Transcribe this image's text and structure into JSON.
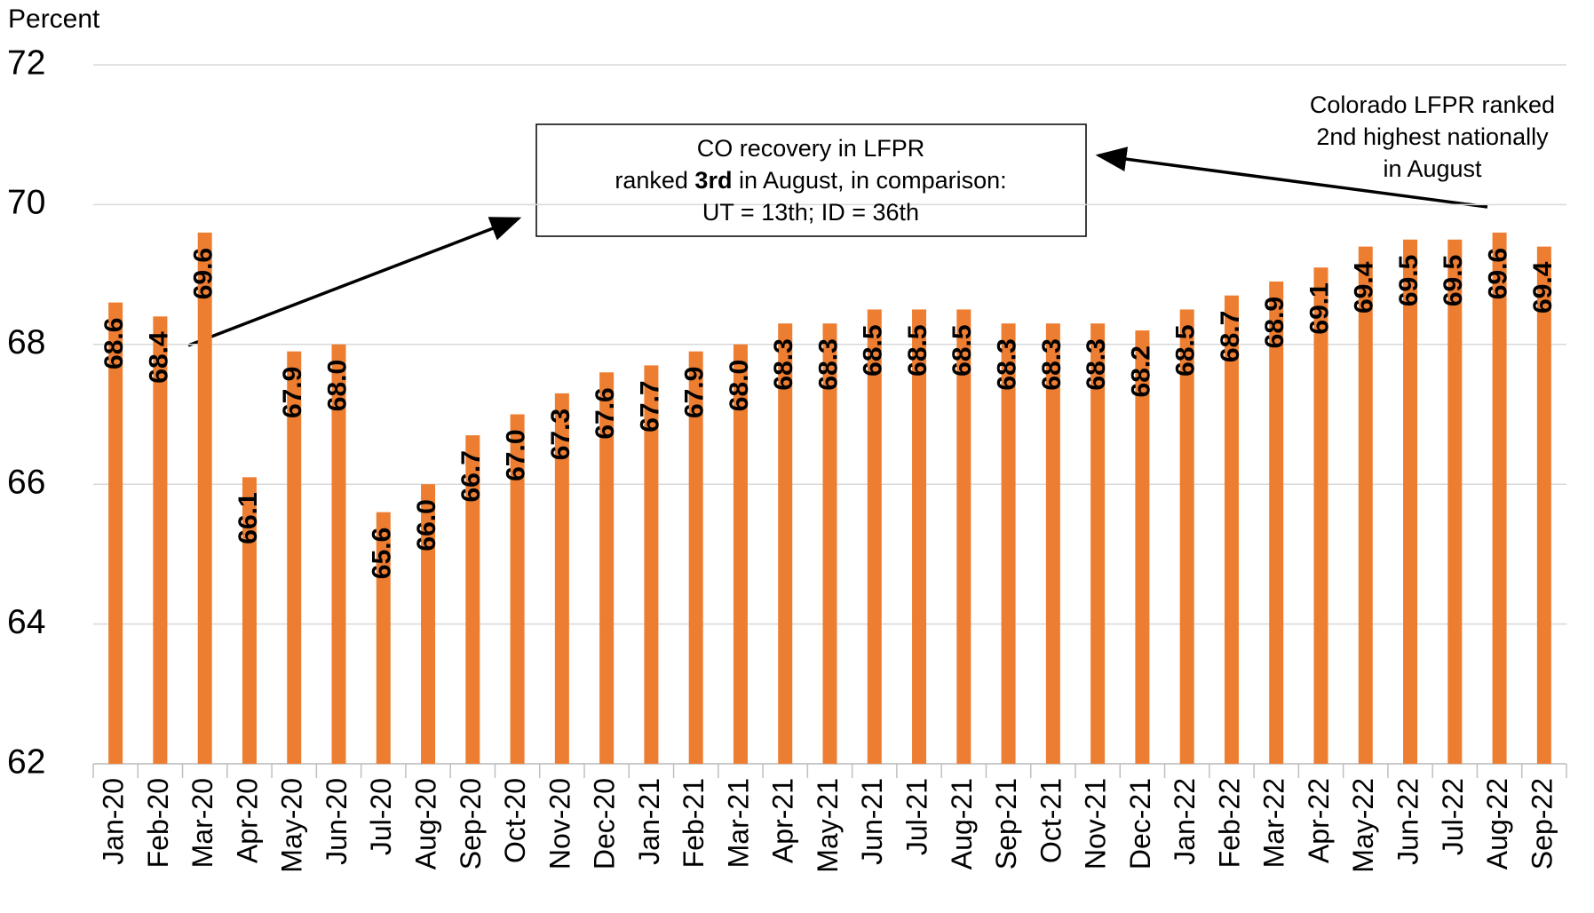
{
  "chart_data": {
    "type": "bar",
    "y_axis_label": "Percent",
    "categories": [
      "Jan-20",
      "Feb-20",
      "Mar-20",
      "Apr-20",
      "May-20",
      "Jun-20",
      "Jul-20",
      "Aug-20",
      "Sep-20",
      "Oct-20",
      "Nov-20",
      "Dec-20",
      "Jan-21",
      "Feb-21",
      "Mar-21",
      "Apr-21",
      "May-21",
      "Jun-21",
      "Jul-21",
      "Aug-21",
      "Sep-21",
      "Oct-21",
      "Nov-21",
      "Dec-21",
      "Jan-22",
      "Feb-22",
      "Mar-22",
      "Apr-22",
      "May-22",
      "Jun-22",
      "Jul-22",
      "Aug-22",
      "Sep-22"
    ],
    "values": [
      68.6,
      68.4,
      69.6,
      66.1,
      67.9,
      68.0,
      65.6,
      66.0,
      66.7,
      67.0,
      67.3,
      67.6,
      67.7,
      67.9,
      68.0,
      68.3,
      68.3,
      68.5,
      68.5,
      68.5,
      68.3,
      68.3,
      68.3,
      68.2,
      68.5,
      68.7,
      68.9,
      69.1,
      69.4,
      69.5,
      69.5,
      69.6,
      69.4
    ],
    "value_labels": [
      "68.6",
      "68.4",
      "69.6",
      "66.1",
      "67.9",
      "68.0",
      "65.6",
      "66.0",
      "66.7",
      "67.0",
      "67.3",
      "67.6",
      "67.7",
      "67.9",
      "68.0",
      "68.3",
      "68.3",
      "68.5",
      "68.5",
      "68.5",
      "68.3",
      "68.3",
      "68.3",
      "68.2",
      "68.5",
      "68.7",
      "68.9",
      "69.1",
      "69.4",
      "69.5",
      "69.5",
      "69.6",
      "69.4"
    ],
    "color": "#ed7d31",
    "ylim": [
      62,
      72
    ],
    "yticks": [
      62,
      64,
      66,
      68,
      70,
      72
    ],
    "grid": true,
    "annotations": [
      {
        "lines": [
          [
            "CO recovery in LFPR"
          ],
          [
            "ranked ",
            "3rd",
            " in August, in comparison:"
          ],
          [
            "UT = 13th; ID = 36th"
          ]
        ]
      },
      {
        "lines": [
          [
            "Colorado LFPR ranked"
          ],
          [
            "2nd highest nationally"
          ],
          [
            "in August"
          ]
        ]
      }
    ]
  }
}
